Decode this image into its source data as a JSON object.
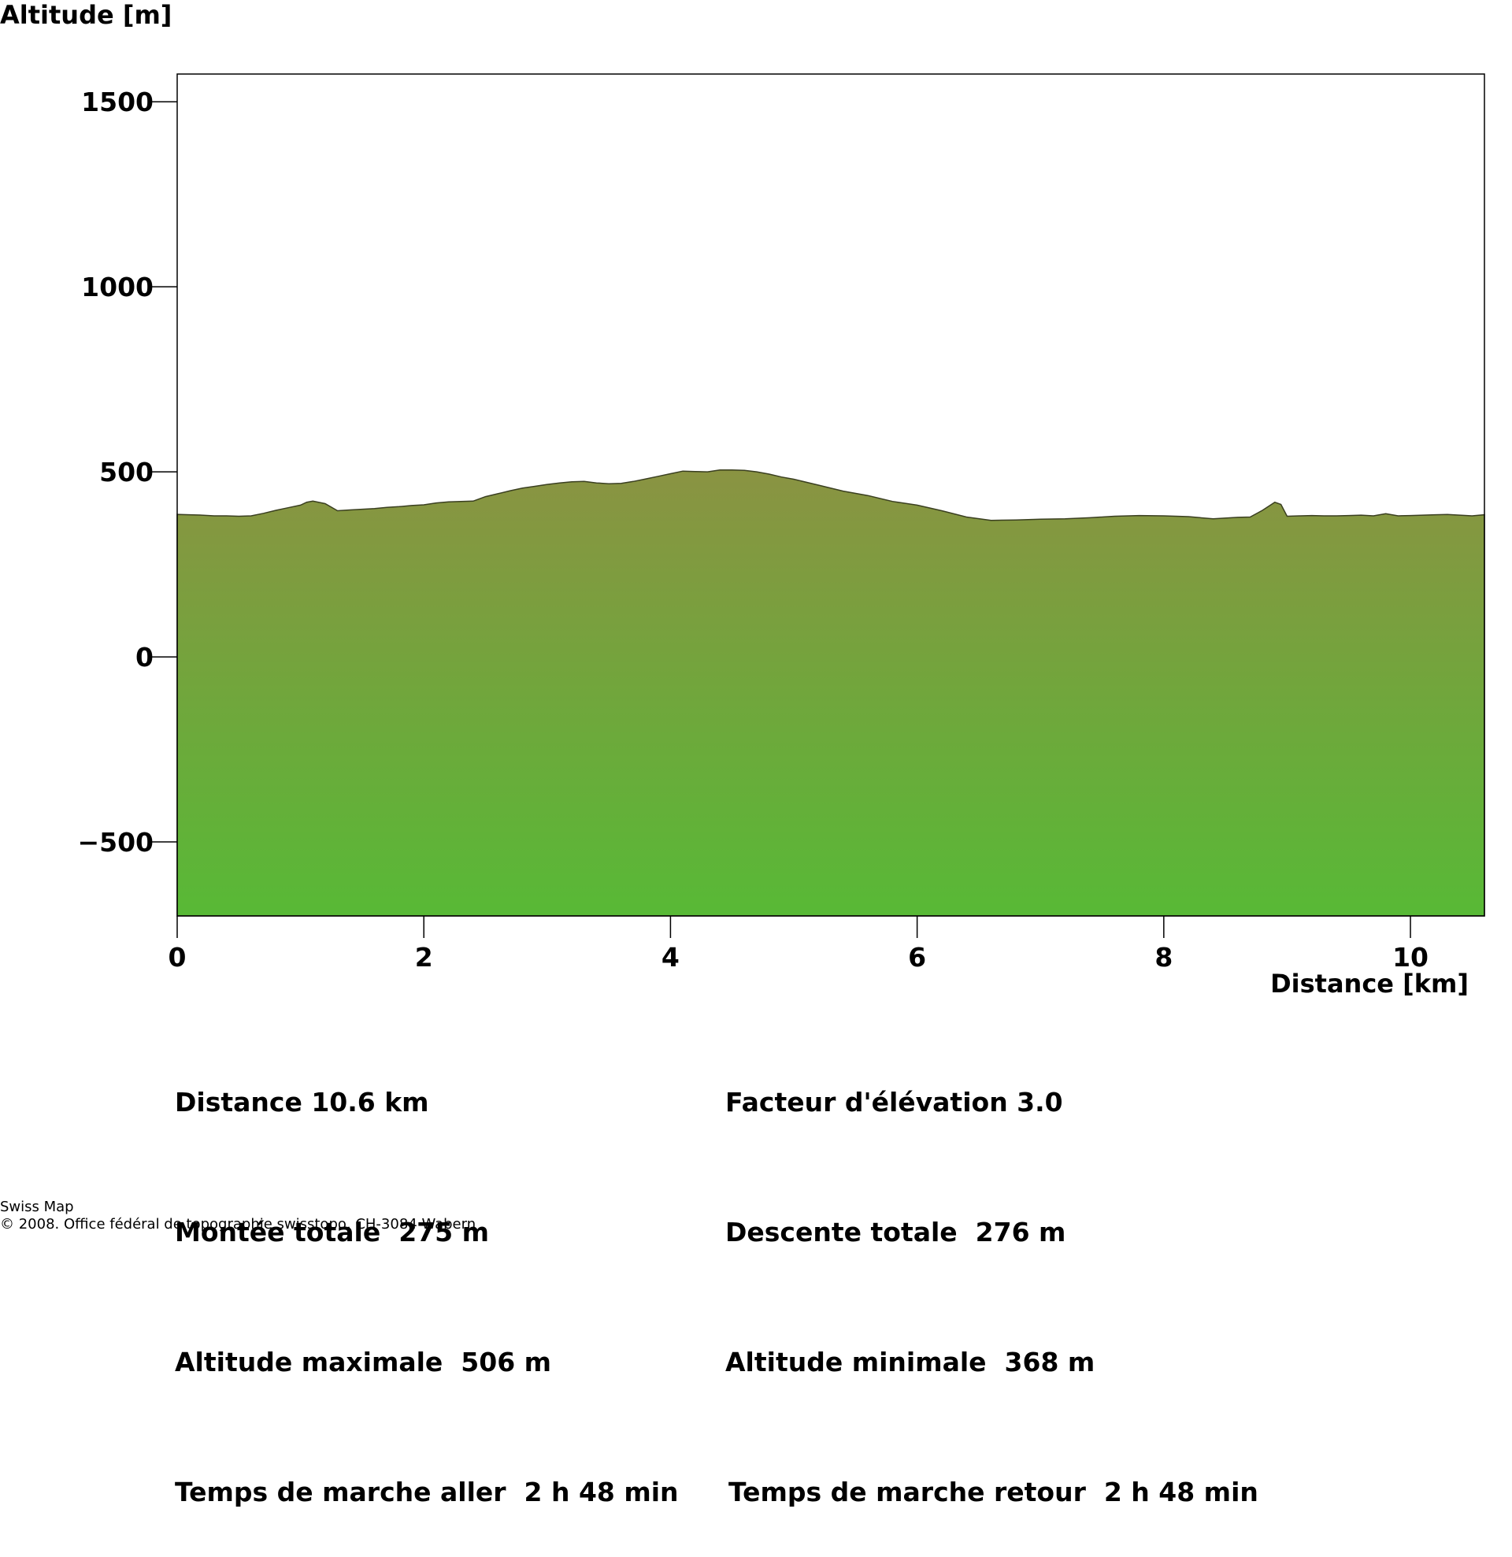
{
  "chart_data": {
    "type": "area",
    "ylabel": "Altitude [m]",
    "xlabel": "Distance [km]",
    "xlim": [
      0,
      10.6
    ],
    "ylim": [
      -700,
      1575
    ],
    "x_ticks": [
      0,
      2,
      4,
      6,
      8,
      10
    ],
    "y_ticks": [
      1500,
      1000,
      500,
      0,
      -500
    ],
    "x_tick_labels": [
      "0",
      "2",
      "4",
      "6",
      "8",
      "10"
    ],
    "y_tick_labels": [
      "1500",
      "1000",
      "500",
      "0",
      "−500"
    ],
    "fill_colors": {
      "top": "#8a9342",
      "bottom": "#58b936"
    },
    "grid": false,
    "legend": "none",
    "series": [
      {
        "x": [
          0,
          0.1,
          0.2,
          0.3,
          0.4,
          0.5,
          0.6,
          0.7,
          0.8,
          0.9,
          1.0,
          1.05,
          1.1,
          1.2,
          1.3,
          1.4,
          1.5,
          1.6,
          1.7,
          1.8,
          1.9,
          2.0,
          2.1,
          2.2,
          2.3,
          2.4,
          2.5,
          2.6,
          2.7,
          2.8,
          2.9,
          3.0,
          3.1,
          3.2,
          3.3,
          3.4,
          3.5,
          3.6,
          3.7,
          3.8,
          3.9,
          4.0,
          4.1,
          4.2,
          4.3,
          4.4,
          4.5,
          4.6,
          4.7,
          4.8,
          4.9,
          5.0,
          5.2,
          5.4,
          5.6,
          5.8,
          6.0,
          6.2,
          6.4,
          6.6,
          6.8,
          7.0,
          7.2,
          7.4,
          7.6,
          7.8,
          8.0,
          8.2,
          8.4,
          8.6,
          8.7,
          8.8,
          8.9,
          8.95,
          9.0,
          9.1,
          9.2,
          9.3,
          9.4,
          9.5,
          9.6,
          9.7,
          9.8,
          9.9,
          10.0,
          10.1,
          10.2,
          10.3,
          10.4,
          10.5,
          10.6
        ],
        "values": [
          385,
          384,
          383,
          381,
          381,
          380,
          381,
          388,
          396,
          403,
          410,
          418,
          421,
          414,
          395,
          397,
          399,
          401,
          404,
          406,
          409,
          411,
          416,
          419,
          420,
          421,
          433,
          441,
          449,
          456,
          461,
          466,
          470,
          473,
          474,
          470,
          468,
          469,
          474,
          481,
          488,
          495,
          502,
          501,
          500,
          505,
          505,
          504,
          500,
          494,
          486,
          480,
          464,
          448,
          436,
          420,
          410,
          395,
          378,
          369,
          370,
          372,
          373,
          376,
          380,
          382,
          381,
          379,
          373,
          377,
          378,
          396,
          418,
          412,
          380,
          381,
          382,
          381,
          381,
          382,
          383,
          381,
          387,
          381,
          382,
          383,
          384,
          385,
          383,
          381,
          384
        ]
      }
    ]
  },
  "stats": {
    "left": [
      "Distance 10.6 km",
      "Montée totale  275 m",
      "Altitude maximale  506 m",
      "Temps de marche aller  2 h 48 min"
    ],
    "right": [
      "Facteur d'élévation 3.0",
      "Descente totale  276 m",
      "Altitude minimale  368 m",
      "Temps de marche retour  2 h 48 min"
    ]
  },
  "credits": {
    "line1": "Swiss Map",
    "line2": "© 2008. Office fédéral de topographie swisstopo, CH-3084 Wabern"
  }
}
